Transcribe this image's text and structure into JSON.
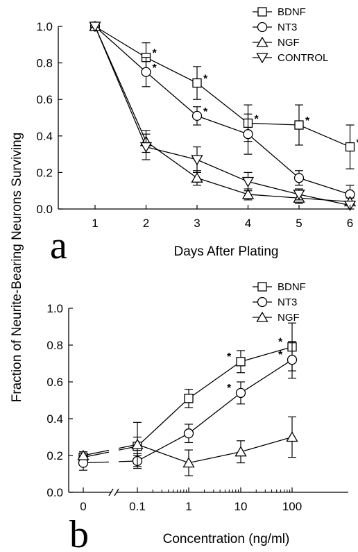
{
  "shared_ylabel": "Fraction of Neurite-Bearing Neurons Surviving",
  "chart_data": [
    {
      "panel": "a",
      "type": "line",
      "xlabel": "Days After Plating",
      "ylabel": "Fraction of Neurite-Bearing Neurons Surviving",
      "x": [
        1,
        2,
        3,
        4,
        5,
        6
      ],
      "xticks": [
        "1",
        "2",
        "3",
        "4",
        "5",
        "6"
      ],
      "xlim": [
        0.35,
        6.3
      ],
      "ylim": [
        0,
        1.0
      ],
      "yticks": [
        "0.0",
        "0.2",
        "0.4",
        "0.6",
        "0.8",
        "1.0"
      ],
      "legend_position": "top-right",
      "series": [
        {
          "name": "BDNF",
          "marker": "square",
          "values": [
            1.0,
            0.83,
            0.69,
            0.47,
            0.46,
            0.34
          ],
          "errors": [
            0,
            0.08,
            0.09,
            0.1,
            0.11,
            0.12
          ],
          "significant": [
            false,
            true,
            true,
            true,
            true,
            true
          ]
        },
        {
          "name": "NT3",
          "marker": "circle",
          "values": [
            1.0,
            0.75,
            0.51,
            0.41,
            0.17,
            0.08
          ],
          "errors": [
            0,
            0.08,
            0.05,
            0.11,
            0.04,
            0.05
          ],
          "significant": [
            false,
            true,
            true,
            false,
            false,
            false
          ]
        },
        {
          "name": "NGF",
          "marker": "triangle-up",
          "values": [
            1.0,
            0.37,
            0.17,
            0.08,
            0.06,
            0.04
          ],
          "errors": [
            0,
            0.06,
            0.04,
            0.03,
            0.03,
            0.02
          ],
          "significant": [
            false,
            false,
            false,
            false,
            false,
            false
          ]
        },
        {
          "name": "CONTROL",
          "marker": "triangle-down",
          "values": [
            1.0,
            0.34,
            0.27,
            0.15,
            0.08,
            0.02
          ],
          "errors": [
            0,
            0.07,
            0.07,
            0.05,
            0.03,
            0.02
          ],
          "significant": [
            false,
            false,
            false,
            false,
            false,
            false
          ]
        }
      ]
    },
    {
      "panel": "b",
      "type": "line",
      "xlabel": "Concentration (ng/ml)",
      "ylabel": "Fraction of Neurite-Bearing Neurons Surviving",
      "x_scale": "log with broken axis at zero",
      "x": [
        0,
        0.1,
        1,
        10,
        100
      ],
      "xticks": [
        "0",
        "0.1",
        "1",
        "10",
        "100"
      ],
      "ylim": [
        0,
        1.0
      ],
      "yticks": [
        "0.0",
        "0.2",
        "0.4",
        "0.6",
        "0.8",
        "1.0"
      ],
      "legend_position": "top-right",
      "series": [
        {
          "name": "BDNF",
          "marker": "square",
          "values": [
            0.19,
            0.25,
            0.51,
            0.71,
            0.79
          ],
          "errors": [
            0.03,
            0.05,
            0.05,
            0.06,
            0.13
          ],
          "significant": [
            false,
            false,
            false,
            true,
            true
          ]
        },
        {
          "name": "NT3",
          "marker": "circle",
          "values": [
            0.16,
            0.17,
            0.32,
            0.54,
            0.72
          ],
          "errors": [
            0.04,
            0.04,
            0.05,
            0.06,
            0.1
          ],
          "significant": [
            false,
            false,
            false,
            true,
            true
          ]
        },
        {
          "name": "NGF",
          "marker": "triangle-up",
          "values": [
            0.2,
            0.26,
            0.16,
            0.22,
            0.3
          ],
          "errors": [
            0.02,
            0.12,
            0.07,
            0.06,
            0.11
          ],
          "significant": [
            false,
            false,
            false,
            false,
            false
          ]
        }
      ]
    }
  ]
}
